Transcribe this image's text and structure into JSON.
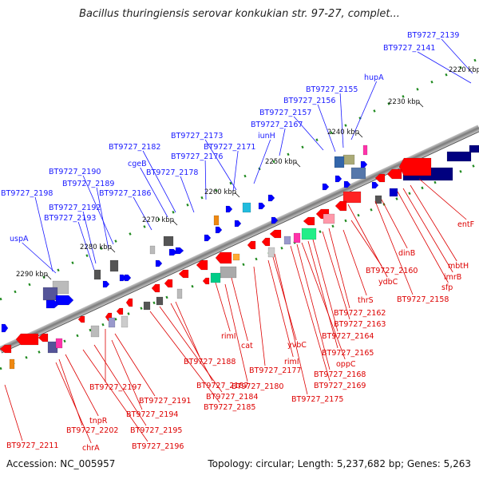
{
  "title": "Bacillus thuringiensis serovar konkukian str. 97-27, complet...",
  "footer": {
    "accession": "Accession: NC_005957",
    "summary": "Topology: circular; Length: 5,237,682 bp; Genes: 5,263"
  },
  "colors": {
    "blue_label": "#1a1aff",
    "red_label": "#dd0000",
    "axis": "#888888",
    "tick": "#1f8a1f"
  },
  "kbp_labels": [
    "2220 kbp",
    "2230 kbp",
    "2240 kbp",
    "2250 kbp",
    "2260 kbp",
    "2270 kbp",
    "2280 kbp",
    "2290 kbp"
  ],
  "blue_labels": [
    "BT9727_2139",
    "BT9727_2141",
    "hupA",
    "BT9727_2155",
    "BT9727_2156",
    "BT9727_2157",
    "BT9727_2167",
    "BT9727_2173",
    "iunH",
    "BT9727_2171",
    "BT9727_2182",
    "BT9727_2176",
    "cgeB",
    "BT9727_2178",
    "BT9727_2190",
    "BT9727_2189",
    "BT9727_2198",
    "BT9727_2186",
    "BT9727_2192",
    "BT9727_2193",
    "uspA"
  ],
  "red_labels": [
    "entF",
    "mbtH",
    "imrB",
    "sfp",
    "dinB",
    "BT9727_2160",
    "ydbC",
    "BT9727_2158",
    "thrS",
    "BT9727_2162",
    "BT9727_2163",
    "BT9727_2164",
    "BT9727_2165",
    "oppC",
    "BT9727_2168",
    "BT9727_2169",
    "yvbC",
    "rimI",
    "cat",
    "rimI",
    "BT9727_2177",
    "BT9727_2180",
    "BT9727_2175",
    "BT9727_2188",
    "BT9727_2187",
    "BT9727_2184",
    "BT9727_2185",
    "BT9727_2197",
    "BT9727_2191",
    "BT9727_2194",
    "BT9727_2195",
    "BT9727_2196",
    "tnpR",
    "BT9727_2202",
    "chrA",
    "BT9727_2211"
  ]
}
